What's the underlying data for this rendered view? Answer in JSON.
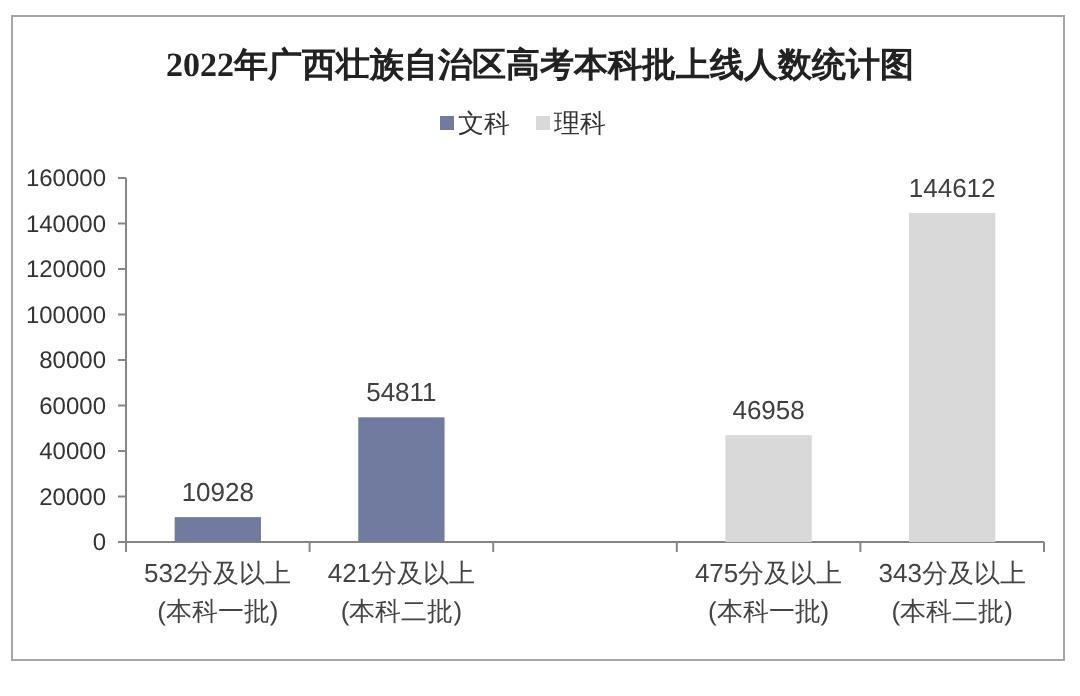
{
  "chart_data": {
    "type": "bar",
    "title": "2022年广西壮族自治区高考本科批上线人数统计图",
    "categories": [
      "532分及以上\n(本科一批)",
      "421分及以上\n(本科二批)",
      null,
      "475分及以上\n(本科一批)",
      "343分及以上\n(本科二批)"
    ],
    "series": [
      {
        "name": "文科",
        "color": "#717ba0",
        "values": [
          10928,
          54811,
          null,
          null,
          null
        ]
      },
      {
        "name": "理科",
        "color": "#d9d9d9",
        "values": [
          null,
          null,
          null,
          46958,
          144612
        ]
      }
    ],
    "ylim": [
      0,
      160000
    ],
    "yticks": [
      0,
      20000,
      40000,
      60000,
      80000,
      100000,
      120000,
      140000,
      160000
    ],
    "data_labels": true,
    "legend": "top",
    "grid": false
  }
}
